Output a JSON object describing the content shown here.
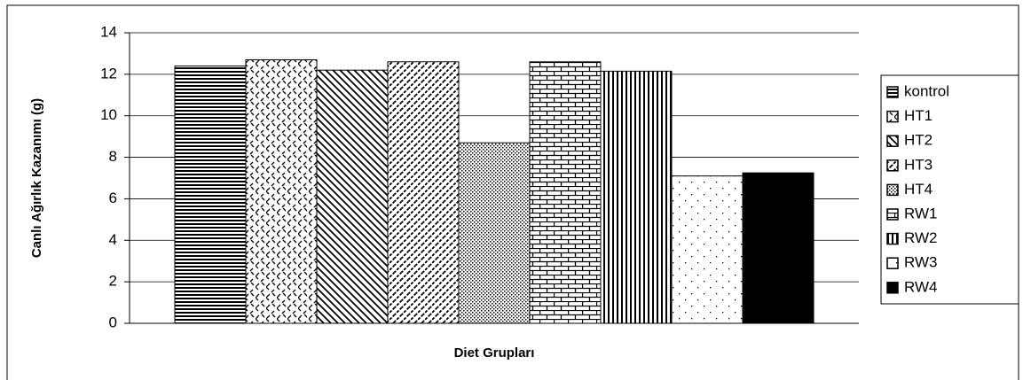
{
  "chart_data": {
    "type": "bar",
    "categories": [
      null
    ],
    "series": [
      {
        "name": "kontrol",
        "pattern": "horizontal",
        "values": [
          12.4
        ]
      },
      {
        "name": "HT1",
        "pattern": "dashed-diagonal",
        "values": [
          12.7
        ]
      },
      {
        "name": "HT2",
        "pattern": "back-diagonal",
        "values": [
          12.2
        ]
      },
      {
        "name": "HT3",
        "pattern": "forward-diagonal",
        "values": [
          12.6
        ]
      },
      {
        "name": "HT4",
        "pattern": "dense-dots",
        "values": [
          8.7
        ]
      },
      {
        "name": "RW1",
        "pattern": "brick",
        "values": [
          12.6
        ]
      },
      {
        "name": "RW2",
        "pattern": "vertical",
        "values": [
          12.15
        ]
      },
      {
        "name": "RW3",
        "pattern": "sparse-dots",
        "values": [
          7.1
        ]
      },
      {
        "name": "RW4",
        "pattern": "solid",
        "values": [
          7.25
        ]
      }
    ],
    "xlabel": "Diet Grupları",
    "ylabel": "Canlı Ağırlık Kazanımı (g)",
    "ylim": [
      0,
      14
    ],
    "yticks": [
      0,
      2,
      4,
      6,
      8,
      10,
      12,
      14
    ],
    "grid": true,
    "legend": "right"
  }
}
